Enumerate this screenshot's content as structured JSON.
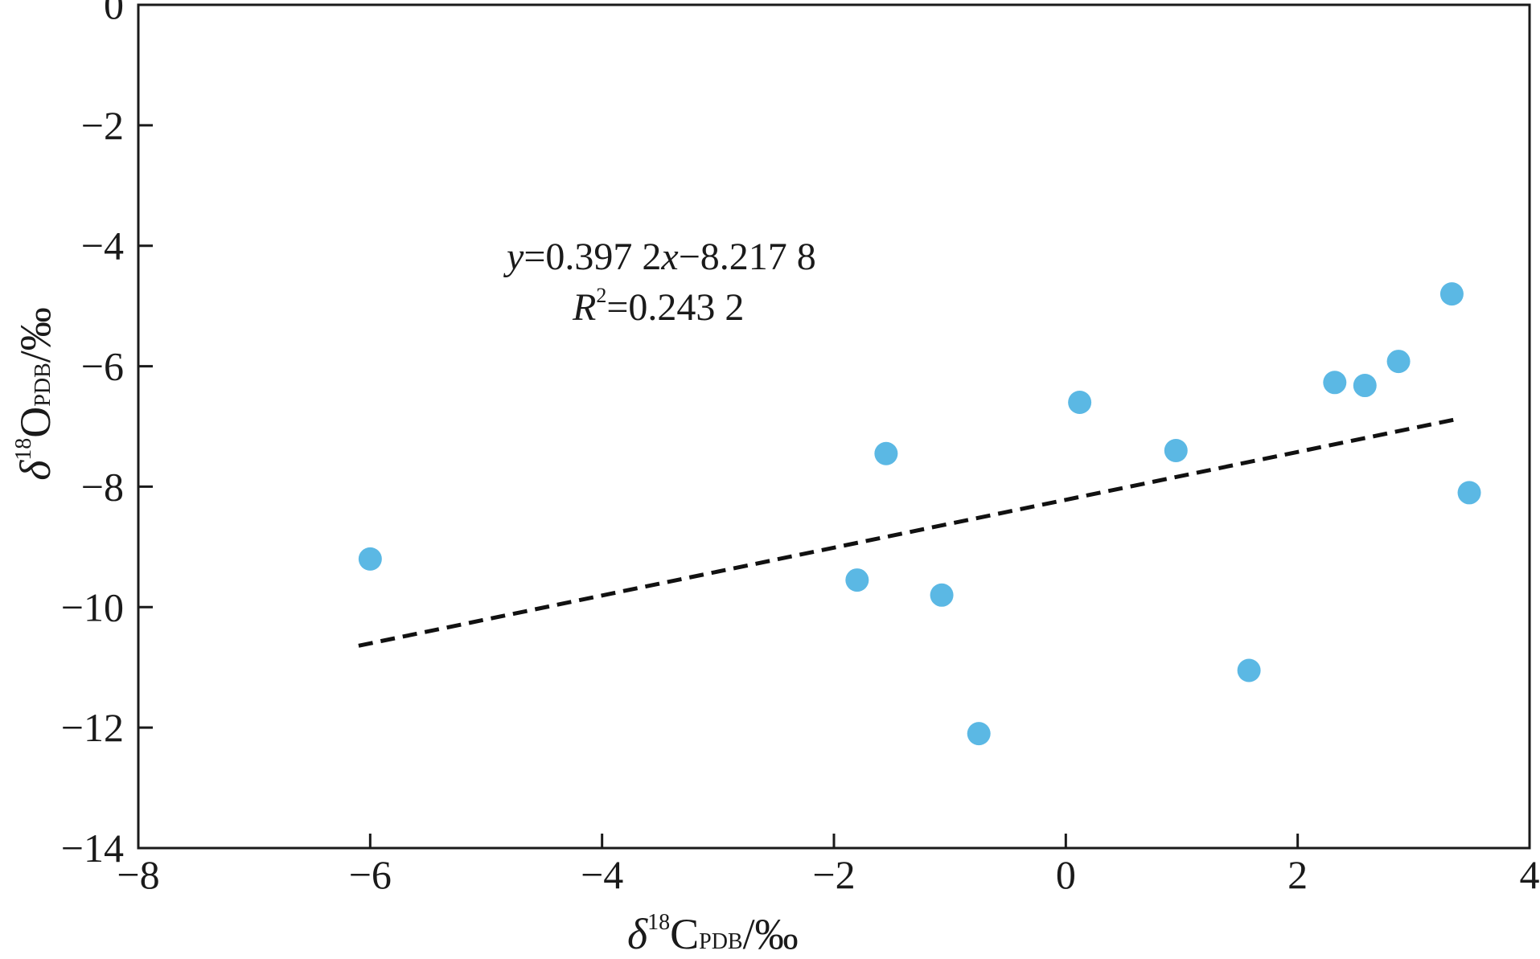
{
  "chart_data": {
    "type": "scatter",
    "x_ticks": [
      "−8",
      "−6",
      "−4",
      "−2",
      "0",
      "2",
      "4"
    ],
    "y_ticks": [
      "0",
      "−2",
      "−4",
      "−6",
      "−8",
      "−10",
      "−12",
      "−14"
    ],
    "xlim": [
      -8,
      4
    ],
    "ylim": [
      -14,
      0
    ],
    "xlabel": {
      "delta": "δ",
      "sup": "18",
      "main": "C",
      "sub": "PDB",
      "unit": "/‰"
    },
    "ylabel": {
      "delta": "δ",
      "sup": "18",
      "main": "O",
      "sub": "PDB",
      "unit": "/‰"
    },
    "points": [
      {
        "x": -6.0,
        "y": -9.2
      },
      {
        "x": -1.8,
        "y": -9.55
      },
      {
        "x": -1.55,
        "y": -7.45
      },
      {
        "x": -1.07,
        "y": -9.8
      },
      {
        "x": -0.75,
        "y": -12.1
      },
      {
        "x": 0.12,
        "y": -6.6
      },
      {
        "x": 0.95,
        "y": -7.4
      },
      {
        "x": 1.58,
        "y": -11.05
      },
      {
        "x": 2.32,
        "y": -6.27
      },
      {
        "x": 2.58,
        "y": -6.32
      },
      {
        "x": 2.87,
        "y": -5.92
      },
      {
        "x": 3.33,
        "y": -4.8
      },
      {
        "x": 3.48,
        "y": -8.1
      }
    ],
    "trendline": {
      "slope": 0.3972,
      "intercept": -8.2178,
      "x_range": [
        -6.1,
        3.4
      ],
      "style": "dashed"
    },
    "equation": {
      "y": "y",
      "eq1": "=0.397 2",
      "x": "x",
      "eq2": "−8.217 8"
    },
    "r_squared": {
      "r": "R",
      "exp": "2",
      "val": "=0.243 2"
    },
    "colors": {
      "points": "#5bb8e4",
      "trendline": "#111111",
      "axis": "#1a1a1a"
    },
    "grid": false,
    "legend": "none"
  }
}
